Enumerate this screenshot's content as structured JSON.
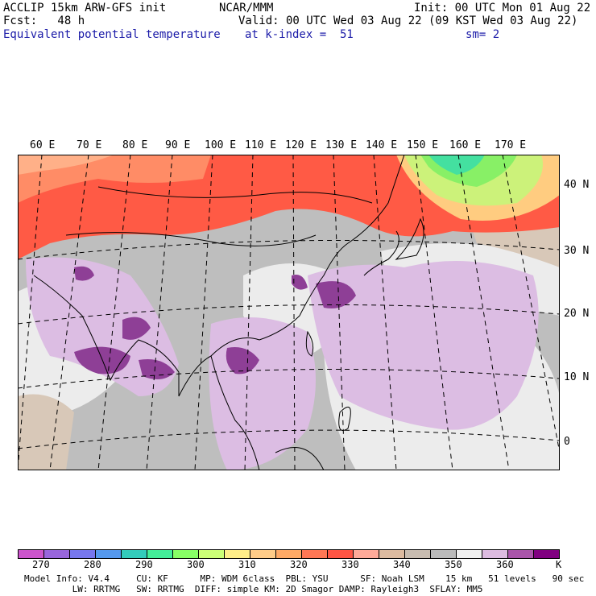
{
  "header": {
    "left1": "ACCLIP 15km ARW-GFS init",
    "left2": "Fcst:   48 h",
    "left3": "Equivalent potential temperature",
    "center1": "NCAR/MMM",
    "center2": "Valid: 00 UTC Wed 03 Aug 22 (09 KST Wed 03 Aug 22)",
    "center3a": "at k-index =  51",
    "right1": "Init: 00 UTC Mon 01 Aug 22",
    "right3": "sm= 2"
  },
  "map": {
    "lon_labels": [
      "60 E",
      "70 E",
      "80 E",
      "90 E",
      "100 E",
      "110 E",
      "120 E",
      "130 E",
      "140 E",
      "150 E",
      "160 E",
      "170 E"
    ],
    "lat_labels": [
      "40 N",
      "30 N",
      "20 N",
      "10 N",
      "0"
    ]
  },
  "colorbar": {
    "colors": [
      "#cc55cc",
      "#9966dd",
      "#7777ee",
      "#5599ee",
      "#33ccbb",
      "#44ee99",
      "#88ff66",
      "#ccff77",
      "#ffee88",
      "#ffcc88",
      "#ffaa66",
      "#ff7755",
      "#ff5544",
      "#ffaa99",
      "#ddbba0",
      "#c8bcb0",
      "#bbbbbb",
      "#f0f0f0",
      "#ddbbe0",
      "#aa55aa",
      "#800080"
    ],
    "labels": [
      "270",
      "280",
      "290",
      "300",
      "310",
      "320",
      "330",
      "340",
      "350",
      "360",
      "K"
    ]
  },
  "footer": {
    "line1": "Model Info: V4.4     CU: KF      MP: WDM 6class  PBL: YSU      SF: Noah LSM    15 km   51 levels   90 sec",
    "line2": "         LW: RRTMG   SW: RRTMG  DIFF: simple KM: 2D Smagor DAMP: Rayleigh3  SFLAY: MM5"
  }
}
